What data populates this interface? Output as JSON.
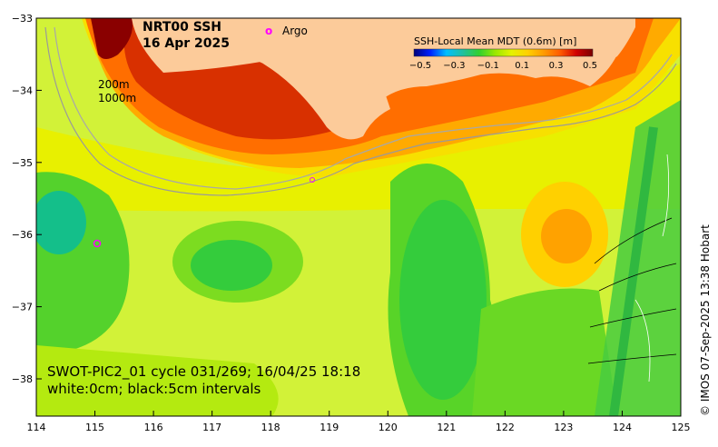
{
  "title": {
    "line1": "NRT00 SSH",
    "line2": "16 Apr 2025"
  },
  "legend": {
    "argo_symbol": "o",
    "argo_label": "Argo"
  },
  "contour_labels": {
    "isobath_200": "200m",
    "isobath_1000": "1000m"
  },
  "colorbar": {
    "title": "SSH-Local Mean MDT (0.6m) [m]",
    "ticks": [
      "−0.5",
      "−0.3",
      "−0.1",
      "0.1",
      "0.3",
      "0.5"
    ],
    "colors": [
      "#00007a",
      "#0020ff",
      "#00bfff",
      "#20c0a0",
      "#30d030",
      "#9ae800",
      "#e5f200",
      "#ffd000",
      "#ff9a00",
      "#ff5a00",
      "#d00000",
      "#7a0000"
    ]
  },
  "axes": {
    "x_ticks": [
      "114",
      "115",
      "116",
      "117",
      "118",
      "119",
      "120",
      "121",
      "122",
      "123",
      "124",
      "125"
    ],
    "y_ticks": [
      "−33",
      "−34",
      "−35",
      "−36",
      "−37",
      "−38"
    ]
  },
  "swot": {
    "line1": "SWOT-PIC2_01 cycle 031/269; 16/04/25 18:18",
    "line2": "white:0cm; black:5cm intervals"
  },
  "credit": "© IMOS 07-Sep-2025 13:38 Hobart",
  "colors": {
    "land": "#fccb9a",
    "field_bg": "#d2f238",
    "argo": "#ff00ff"
  }
}
